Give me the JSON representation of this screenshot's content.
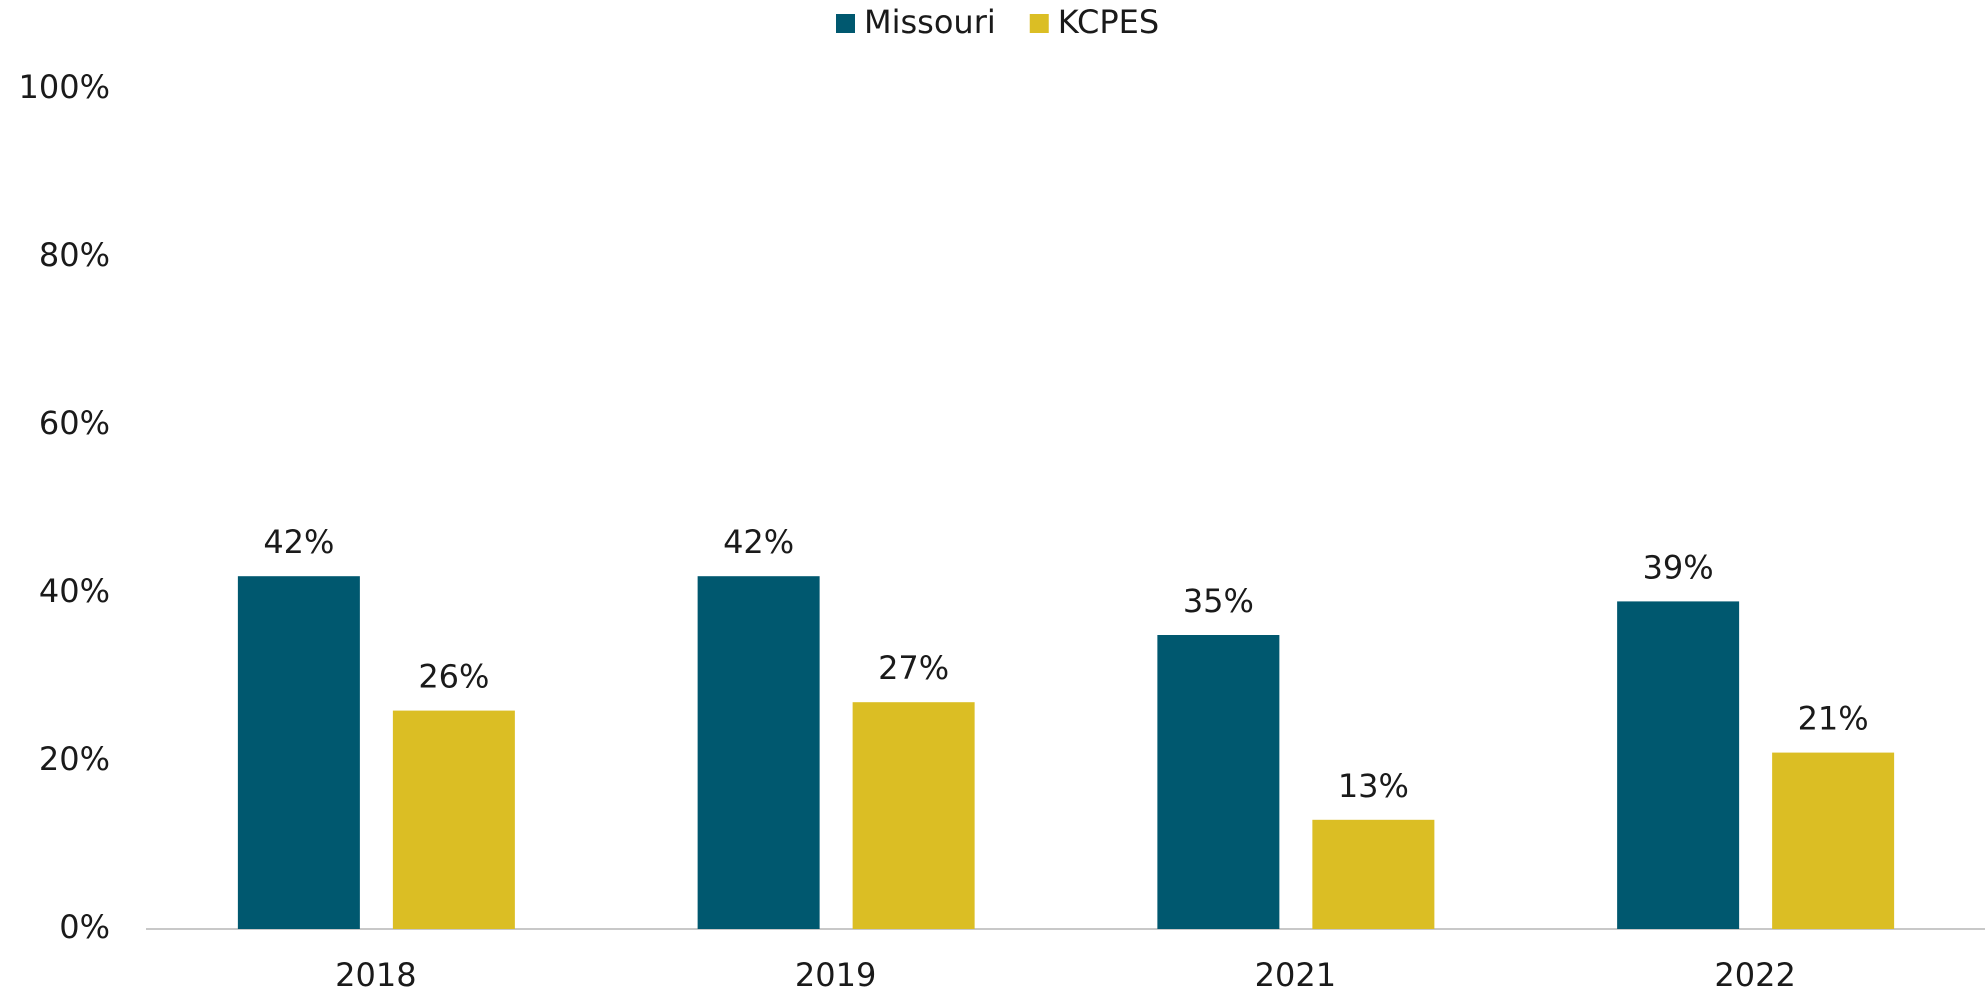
{
  "chart_data": {
    "type": "bar",
    "categories": [
      "2018",
      "2019",
      "2021",
      "2022"
    ],
    "series": [
      {
        "name": "Missouri",
        "color": "#00586f",
        "values": [
          42,
          42,
          35,
          39
        ],
        "value_labels": [
          "42%",
          "42%",
          "35%",
          "39%"
        ]
      },
      {
        "name": "KCPES",
        "color": "#dbbe24",
        "values": [
          26,
          27,
          13,
          21
        ],
        "value_labels": [
          "26%",
          "27%",
          "13%",
          "21%"
        ]
      }
    ],
    "ylim": [
      0,
      100
    ],
    "yticks": [
      {
        "value": 0,
        "label": "0%"
      },
      {
        "value": 20,
        "label": "20%"
      },
      {
        "value": 40,
        "label": "40%"
      },
      {
        "value": 60,
        "label": "60%"
      },
      {
        "value": 80,
        "label": "80%"
      },
      {
        "value": 100,
        "label": "100%"
      }
    ],
    "grid": false,
    "legend": "top"
  }
}
